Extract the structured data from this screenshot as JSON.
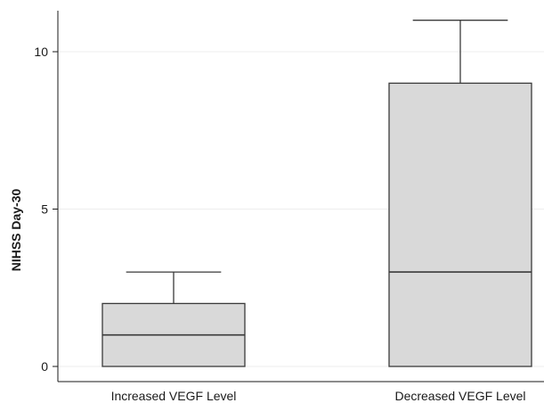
{
  "chart_data": {
    "type": "box",
    "title": "",
    "xlabel": "",
    "ylabel": "NIHSS Day-30",
    "ylim": [
      0,
      11
    ],
    "yticks": [
      0,
      5,
      10
    ],
    "grid": true,
    "categories": [
      "Increased VEGF Level",
      "Decreased VEGF Level"
    ],
    "boxes": [
      {
        "category": "Increased VEGF Level",
        "min": 0,
        "q1": 0,
        "median": 1,
        "q3": 2,
        "max": 3
      },
      {
        "category": "Decreased VEGF Level",
        "min": 0,
        "q1": 0,
        "median": 3,
        "q3": 9,
        "max": 11
      }
    ],
    "colors": {
      "box_fill": "#d9d9d9",
      "line": "#3a3a3a",
      "grid": "#eeeeee",
      "axis": "#1a1a1a"
    }
  }
}
